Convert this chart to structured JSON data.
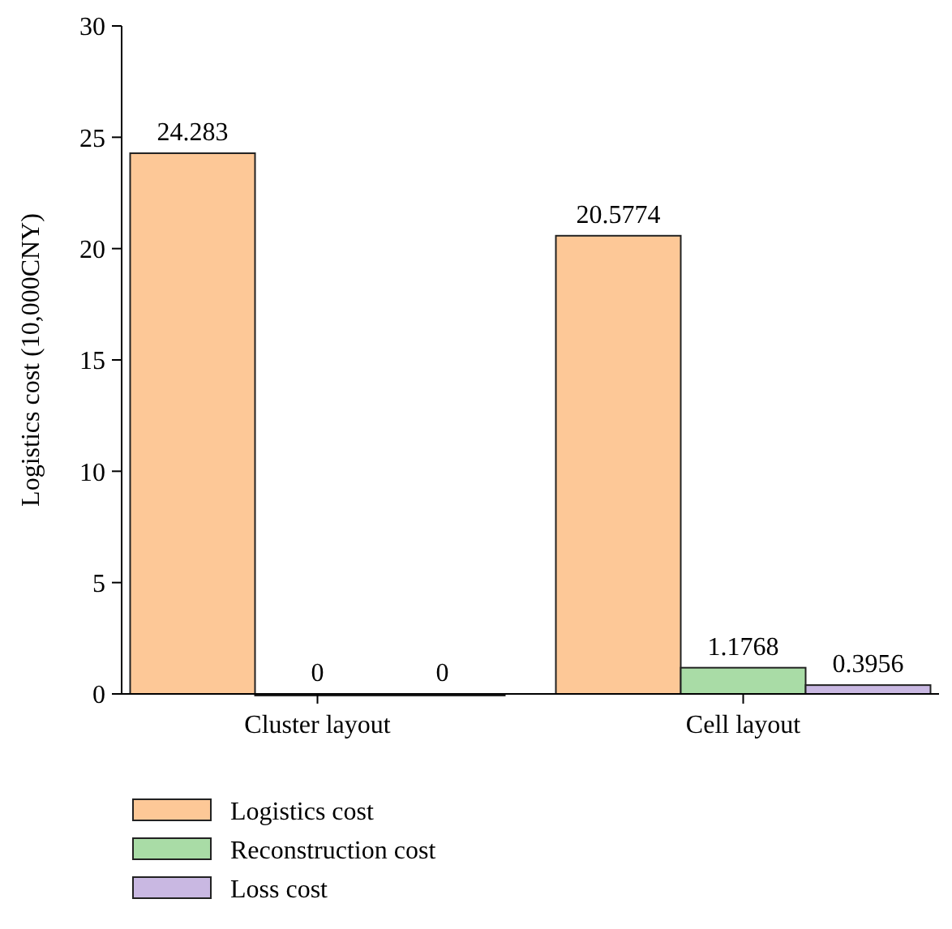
{
  "chart_data": {
    "type": "bar",
    "ylabel": "Logistics cost (10,000CNY)",
    "categories": [
      "Cluster layout",
      "Cell layout"
    ],
    "series": [
      {
        "name": "Logistics cost",
        "color": "#fdc897",
        "values": [
          24.283,
          20.5774
        ]
      },
      {
        "name": "Reconstruction cost",
        "color": "#a9dca6",
        "values": [
          0,
          1.1768
        ]
      },
      {
        "name": "Loss cost",
        "color": "#c9b8e2",
        "values": [
          0,
          0.3956
        ]
      }
    ],
    "ylim": [
      0,
      30
    ],
    "yticks": [
      0,
      5,
      10,
      15,
      20,
      25,
      30
    ],
    "data_labels": true,
    "legend": "bottom",
    "grid": false
  }
}
